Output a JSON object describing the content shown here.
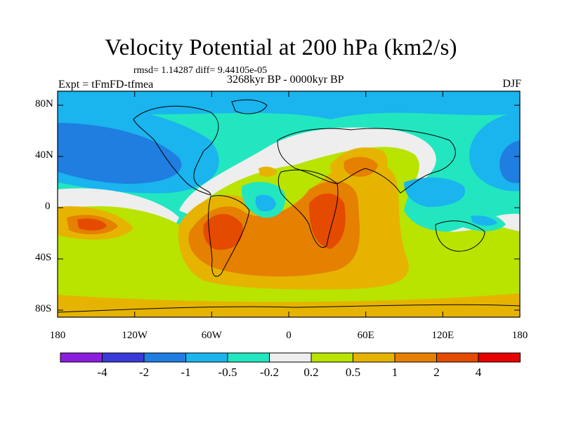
{
  "title": "Velocity Potential at 200 hPa (km2/s)",
  "stats": "rmsd= 1.14287 diff= 9.44105e-05",
  "experiment": "Expt = tFmFD-tfmea",
  "period": "3268kyr BP - 0000kyr BP",
  "season": "DJF",
  "y_axis_labels": [
    "80N",
    "40N",
    "0",
    "40S",
    "80S"
  ],
  "x_axis_labels": [
    "180",
    "120W",
    "60W",
    "0",
    "60E",
    "120E",
    "180"
  ],
  "colorbar": {
    "tick_labels": [
      "-4",
      "-2",
      "-1",
      "-0.5",
      "-0.2",
      "0.2",
      "0.5",
      "1",
      "2",
      "4"
    ],
    "colors": [
      "#8c1ee0",
      "#3a3ad8",
      "#1f7ee0",
      "#1ab4ee",
      "#22e6c0",
      "#eeeeee",
      "#b8e400",
      "#e6b400",
      "#e68000",
      "#e44a00",
      "#e60000"
    ]
  },
  "regions": [
    {
      "name": "north-pacific-low",
      "level": "-2"
    },
    {
      "name": "east-pacific-high",
      "level": "2"
    },
    {
      "name": "south-america-africa-high",
      "level": "2"
    },
    {
      "name": "tropical-atlantic-low",
      "level": "-1"
    },
    {
      "name": "maritime-continent-low",
      "level": "-1"
    }
  ]
}
